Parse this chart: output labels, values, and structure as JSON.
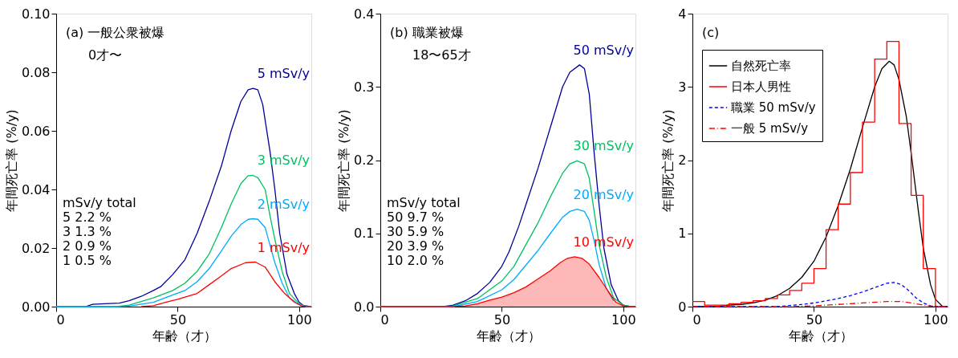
{
  "chart_data": [
    {
      "type": "line",
      "xlabel": "年齢（才）",
      "ylabel": "年間死亡率 (%/y)",
      "xlim": [
        0,
        105
      ],
      "xticks": [
        0,
        50,
        100
      ],
      "ylim": [
        0,
        0.1
      ],
      "yticks": [
        {
          "value": 0,
          "label": "0.00"
        },
        {
          "value": 0.02,
          "label": "0.02"
        },
        {
          "value": 0.04,
          "label": "0.04"
        },
        {
          "value": 0.06,
          "label": "0.06"
        },
        {
          "value": 0.08,
          "label": "0.08"
        },
        {
          "value": 0.1,
          "label": "0.10"
        }
      ],
      "grid": false,
      "legend": false,
      "annotations": [
        "(a) 一般公衆被爆",
        "0才〜",
        "mSv/y    total",
        "  5       2.2 %",
        "  3       1.3 %",
        "  2       0.9 %",
        "  1       0.5 %"
      ],
      "series": [
        {
          "name": "5 mSv/y",
          "type": "line",
          "color": "#000099",
          "x": [
            0,
            12,
            15,
            20,
            26,
            30,
            35,
            40,
            43,
            48,
            53,
            58,
            63,
            68,
            72,
            76,
            79,
            81,
            83,
            85,
            88,
            90,
            92,
            95,
            98,
            100,
            102,
            105
          ],
          "values": [
            0,
            0,
            0.0008,
            0.001,
            0.0012,
            0.002,
            0.0035,
            0.0055,
            0.0068,
            0.011,
            0.016,
            0.025,
            0.036,
            0.048,
            0.06,
            0.07,
            0.074,
            0.0745,
            0.074,
            0.069,
            0.053,
            0.04,
            0.025,
            0.011,
            0.0045,
            0.0015,
            0.0003,
            0
          ]
        },
        {
          "name": "3 mSv/y",
          "type": "line",
          "color": "#00c060",
          "x": [
            0,
            25,
            30,
            40,
            48,
            53,
            58,
            63,
            68,
            72,
            76,
            79,
            81,
            83,
            86,
            88,
            90,
            93,
            96,
            100,
            103,
            105
          ],
          "values": [
            0,
            0,
            0.0005,
            0.003,
            0.0055,
            0.008,
            0.012,
            0.018,
            0.027,
            0.035,
            0.042,
            0.0447,
            0.0448,
            0.044,
            0.04,
            0.031,
            0.023,
            0.012,
            0.0045,
            0.001,
            0,
            0
          ]
        },
        {
          "name": "2 mSv/y",
          "type": "line",
          "color": "#00aaff",
          "x": [
            0,
            25,
            30,
            40,
            48,
            53,
            58,
            63,
            68,
            72,
            76,
            79,
            81,
            83,
            86,
            88,
            90,
            93,
            96,
            100,
            103,
            105
          ],
          "values": [
            0,
            0,
            0.0002,
            0.0015,
            0.004,
            0.0055,
            0.0085,
            0.013,
            0.019,
            0.024,
            0.028,
            0.0298,
            0.03,
            0.0298,
            0.027,
            0.021,
            0.015,
            0.008,
            0.003,
            0.0007,
            0,
            0
          ]
        },
        {
          "name": "1 mSv/y",
          "type": "line",
          "color": "#ff0000",
          "x": [
            35,
            40,
            45,
            50,
            58,
            63,
            68,
            72,
            78,
            82,
            86,
            90,
            94,
            98,
            101,
            105
          ],
          "values": [
            0,
            0.0003,
            0.0015,
            0.0025,
            0.0045,
            0.0075,
            0.0105,
            0.013,
            0.015,
            0.0152,
            0.0135,
            0.0085,
            0.0045,
            0.0015,
            0.0002,
            0
          ]
        }
      ]
    },
    {
      "type": "line",
      "xlabel": "年齢（才）",
      "ylabel": "年間死亡率 (%/y)",
      "xlim": [
        0,
        105
      ],
      "xticks": [
        0,
        50,
        100
      ],
      "ylim": [
        0,
        0.4
      ],
      "yticks": [
        {
          "value": 0,
          "label": "0.0"
        },
        {
          "value": 0.1,
          "label": "0.1"
        },
        {
          "value": 0.2,
          "label": "0.2"
        },
        {
          "value": 0.3,
          "label": "0.3"
        },
        {
          "value": 0.4,
          "label": "0.4"
        }
      ],
      "grid": false,
      "legend": false,
      "annotations": [
        "(b) 職業被爆",
        "18〜65才",
        "mSv/y    total",
        "  50      9.7 %",
        "  30      5.9 %",
        "  20      3.9 %",
        "  10      2.0 %"
      ],
      "series": [
        {
          "name": "50 mSv/y",
          "type": "line",
          "color": "#000099",
          "x": [
            0,
            26,
            30,
            35,
            40,
            45,
            50,
            53,
            57,
            60,
            65,
            70,
            75,
            78,
            82,
            84,
            86,
            88,
            90,
            92,
            95,
            98,
            100,
            103,
            105
          ],
          "values": [
            0,
            0,
            0.002,
            0.008,
            0.018,
            0.033,
            0.055,
            0.075,
            0.11,
            0.14,
            0.19,
            0.245,
            0.3,
            0.32,
            0.33,
            0.325,
            0.29,
            0.21,
            0.14,
            0.08,
            0.03,
            0.008,
            0.002,
            0,
            0
          ]
        },
        {
          "name": "30 mSv/y",
          "type": "line",
          "color": "#00c060",
          "x": [
            0,
            26,
            30,
            40,
            50,
            55,
            60,
            65,
            70,
            75,
            78,
            81,
            84,
            86,
            88,
            90,
            93,
            96,
            100,
            103,
            105
          ],
          "values": [
            0,
            0,
            0.001,
            0.011,
            0.035,
            0.055,
            0.085,
            0.115,
            0.15,
            0.182,
            0.195,
            0.199,
            0.195,
            0.175,
            0.13,
            0.085,
            0.04,
            0.012,
            0.002,
            0,
            0
          ]
        },
        {
          "name": "20 mSv/y",
          "type": "line",
          "color": "#00aaff",
          "x": [
            0,
            26,
            30,
            40,
            50,
            55,
            60,
            65,
            70,
            75,
            78,
            81,
            84,
            86,
            88,
            90,
            93,
            96
          ],
          "values": [
            0,
            0,
            0,
            0.007,
            0.023,
            0.037,
            0.057,
            0.077,
            0.1,
            0.122,
            0.13,
            0.133,
            0.13,
            0.118,
            0.09,
            0.058,
            0.025,
            0.008
          ]
        },
        {
          "name": "10 mSv/y",
          "type": "area",
          "color": "#ff0000",
          "x": [
            0,
            30,
            35,
            40,
            45,
            50,
            55,
            60,
            65,
            70,
            74,
            77,
            80,
            83,
            86,
            90,
            94,
            97,
            100,
            102,
            105
          ],
          "values": [
            0,
            0,
            0.001,
            0.004,
            0.009,
            0.013,
            0.019,
            0.027,
            0.038,
            0.049,
            0.06,
            0.066,
            0.068,
            0.066,
            0.058,
            0.04,
            0.02,
            0.006,
            0.001,
            0,
            0
          ]
        }
      ]
    },
    {
      "type": "line",
      "xlabel": "年齢（才）",
      "ylabel": "年間死亡率 (%/y)",
      "xlim": [
        0,
        105
      ],
      "xticks": [
        0,
        50,
        100
      ],
      "ylim": [
        0,
        4
      ],
      "yticks": [
        {
          "value": 0,
          "label": "0"
        },
        {
          "value": 1,
          "label": "1"
        },
        {
          "value": 2,
          "label": "2"
        },
        {
          "value": 3,
          "label": "3"
        },
        {
          "value": 4,
          "label": "4"
        }
      ],
      "grid": false,
      "legend": "top left",
      "annotations": [
        "(c)"
      ],
      "series": [
        {
          "name": "自然死亡率",
          "type": "line",
          "color": "#000000",
          "line_style": "solid",
          "x": [
            0,
            10,
            15,
            20,
            25,
            30,
            35,
            40,
            45,
            50,
            55,
            60,
            65,
            70,
            75,
            78,
            81,
            83,
            85,
            88,
            90,
            93,
            95,
            98,
            100,
            103,
            105
          ],
          "values": [
            0,
            0,
            0.02,
            0.03,
            0.05,
            0.09,
            0.15,
            0.25,
            0.4,
            0.62,
            0.95,
            1.38,
            1.88,
            2.45,
            3.0,
            3.25,
            3.35,
            3.3,
            3.1,
            2.6,
            2.1,
            1.3,
            0.8,
            0.3,
            0.1,
            0,
            0
          ]
        },
        {
          "name": "日本人男性",
          "type": "step",
          "color": "#ff0000",
          "line_style": "solid",
          "x": [
            0,
            5,
            10,
            15,
            20,
            25,
            30,
            35,
            40,
            45,
            50,
            55,
            60,
            65,
            70,
            75,
            80,
            85,
            90,
            95,
            100,
            105
          ],
          "values": [
            0.07,
            0.02,
            0.02,
            0.04,
            0.06,
            0.08,
            0.11,
            0.16,
            0.22,
            0.32,
            0.52,
            1.05,
            1.4,
            1.83,
            2.52,
            3.38,
            3.62,
            2.5,
            1.52,
            0.52,
            0,
            0
          ]
        },
        {
          "name": "職業 50 mSv/y",
          "type": "line",
          "color": "#0000ff",
          "line_style": "dashed",
          "x": [
            0,
            25,
            35,
            45,
            50,
            55,
            60,
            65,
            70,
            75,
            80,
            83,
            86,
            89,
            92,
            95,
            98,
            101,
            105
          ],
          "values": [
            0,
            0,
            0,
            0.03,
            0.05,
            0.08,
            0.11,
            0.15,
            0.2,
            0.26,
            0.32,
            0.33,
            0.3,
            0.22,
            0.12,
            0.05,
            0.01,
            0,
            0
          ]
        },
        {
          "name": "一般 5 mSv/y",
          "type": "line",
          "color": "#ff0000",
          "line_style": "dashdot",
          "x": [
            0,
            40,
            50,
            60,
            70,
            80,
            83,
            86,
            90,
            95,
            100,
            103,
            105
          ],
          "values": [
            0,
            0,
            0.01,
            0.03,
            0.05,
            0.07,
            0.07,
            0.07,
            0.05,
            0.02,
            0,
            0,
            0
          ]
        }
      ]
    }
  ]
}
